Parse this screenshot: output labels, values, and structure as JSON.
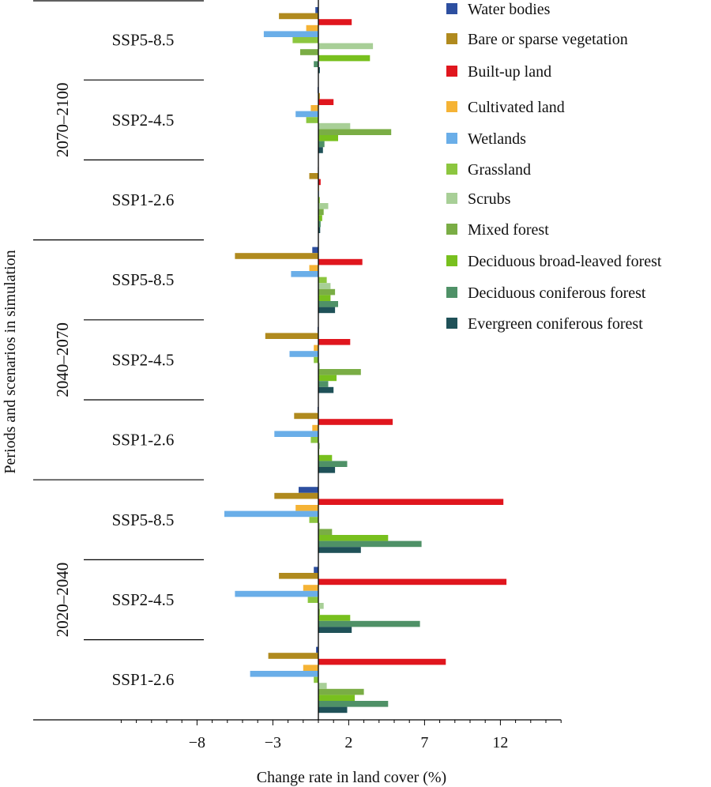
{
  "chart_data": {
    "type": "bar",
    "orientation": "horizontal",
    "title": "",
    "xlabel": "Change rate in land cover (%)",
    "ylabel": "Periods and scenarios in simulation",
    "xlim": [
      -13,
      16
    ],
    "xticks": [
      -8,
      -3,
      2,
      7,
      12
    ],
    "xtick_labels": [
      "−8",
      "−3",
      "2",
      "7",
      "12"
    ],
    "grid": false,
    "legend_position": "top-right",
    "series": [
      {
        "name": "Water bodies",
        "color": "#2d4fa0"
      },
      {
        "name": "Bare or sparse vegetation",
        "color": "#b08a1e"
      },
      {
        "name": "Built-up land",
        "color": "#e0161e"
      },
      {
        "name": "Cultivated land",
        "color": "#f5b335"
      },
      {
        "name": "Wetlands",
        "color": "#6aaee8"
      },
      {
        "name": "Grassland",
        "color": "#8cc63f"
      },
      {
        "name": "Scrubs",
        "color": "#a8cf97"
      },
      {
        "name": "Mixed forest",
        "color": "#7aad45"
      },
      {
        "name": "Deciduous broad-leaved forest",
        "color": "#78c01e"
      },
      {
        "name": "Deciduous coniferous forest",
        "color": "#4f9167"
      },
      {
        "name": "Evergreen coniferous forest",
        "color": "#1f5158"
      }
    ],
    "periods": [
      {
        "label": "2070–2100",
        "groups": [
          {
            "scenario": "SSP5-8.5",
            "values": [
              -0.2,
              -2.6,
              2.2,
              -0.8,
              -3.6,
              -1.7,
              3.6,
              -1.2,
              3.4,
              -0.3,
              0.1
            ]
          },
          {
            "scenario": "SSP2-4.5",
            "values": [
              -0.05,
              0.1,
              1.0,
              -0.5,
              -1.5,
              -0.8,
              2.1,
              4.8,
              1.3,
              0.4,
              0.3
            ]
          },
          {
            "scenario": "SSP1-2.6",
            "values": [
              -0.03,
              -0.6,
              0.15,
              0.0,
              0.0,
              0.1,
              0.65,
              0.35,
              0.25,
              0.15,
              0.12
            ]
          }
        ]
      },
      {
        "label": "2040–2070",
        "groups": [
          {
            "scenario": "SSP5-8.5",
            "values": [
              -0.4,
              -5.5,
              2.9,
              -0.6,
              -1.8,
              0.55,
              0.8,
              1.1,
              0.8,
              1.3,
              1.1
            ]
          },
          {
            "scenario": "SSP2-4.5",
            "values": [
              -0.05,
              -3.5,
              2.1,
              -0.3,
              -1.9,
              -0.3,
              0.1,
              2.8,
              1.2,
              0.65,
              1.0
            ]
          },
          {
            "scenario": "SSP1-2.6",
            "values": [
              -0.05,
              -1.6,
              4.9,
              -0.4,
              -2.9,
              -0.5,
              0.1,
              0.05,
              0.9,
              1.9,
              1.1
            ]
          }
        ]
      },
      {
        "label": "2020–2040",
        "groups": [
          {
            "scenario": "SSP5-8.5",
            "values": [
              -1.3,
              -2.9,
              12.2,
              -1.5,
              -6.2,
              -0.6,
              0.1,
              0.9,
              4.6,
              6.8,
              2.8
            ]
          },
          {
            "scenario": "SSP2-4.5",
            "values": [
              -0.3,
              -2.6,
              12.4,
              -1.0,
              -5.5,
              -0.7,
              0.35,
              0.1,
              2.1,
              6.7,
              2.2
            ]
          },
          {
            "scenario": "SSP1-2.6",
            "values": [
              -0.15,
              -3.3,
              8.4,
              -1.0,
              -4.5,
              -0.3,
              0.55,
              3.0,
              2.4,
              4.6,
              1.9
            ]
          }
        ]
      }
    ]
  }
}
